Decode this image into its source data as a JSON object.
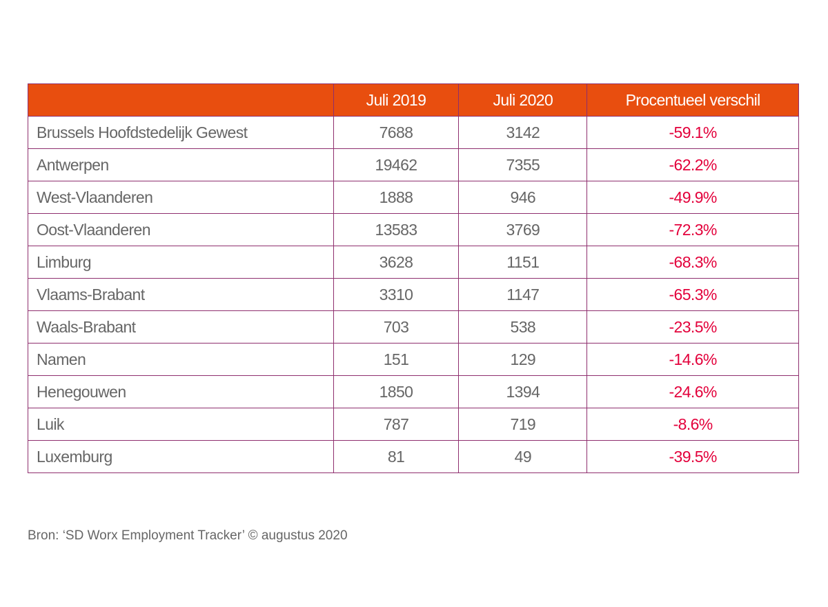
{
  "chart_data": {
    "type": "table",
    "columns": [
      "",
      "Juli 2019",
      "Juli 2020",
      "Procentueel verschil"
    ],
    "rows": [
      [
        "Brussels Hoofdstedelijk Gewest",
        "7688",
        "3142",
        "-59.1%"
      ],
      [
        "Antwerpen",
        "19462",
        "7355",
        "-62.2%"
      ],
      [
        "West-Vlaanderen",
        "1888",
        "946",
        "-49.9%"
      ],
      [
        "Oost-Vlaanderen",
        "13583",
        "3769",
        "-72.3%"
      ],
      [
        "Limburg",
        "3628",
        "1151",
        "-68.3%"
      ],
      [
        "Vlaams-Brabant",
        "3310",
        "1147",
        "-65.3%"
      ],
      [
        "Waals-Brabant",
        "703",
        "538",
        "-23.5%"
      ],
      [
        "Namen",
        "151",
        "129",
        "-14.6%"
      ],
      [
        "Henegouwen",
        "1850",
        "1394",
        "-24.6%"
      ],
      [
        "Luik",
        "787",
        "719",
        "-8.6%"
      ],
      [
        "Luxemburg",
        "81",
        "49",
        "-39.5%"
      ]
    ],
    "colors": {
      "header_bg": "#e84e0f",
      "header_text": "#ffffff",
      "border": "#8e2e6e",
      "negative": "#e3003b",
      "text": "#666666"
    }
  },
  "source": "Bron: ‘SD Worx Employment Tracker’ © augustus 2020"
}
